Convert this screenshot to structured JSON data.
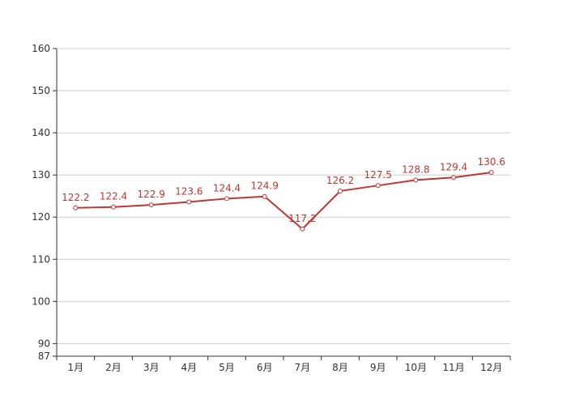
{
  "chart_data": {
    "type": "line",
    "categories": [
      "1月",
      "2月",
      "3月",
      "4月",
      "5月",
      "6月",
      "7月",
      "8月",
      "9月",
      "10月",
      "11月",
      "12月"
    ],
    "series": [
      {
        "values": [
          122.2,
          122.4,
          122.9,
          123.6,
          124.4,
          124.9,
          117.2,
          126.2,
          127.5,
          128.8,
          129.4,
          130.6
        ],
        "color": "#c23531"
      }
    ],
    "ylim": [
      87,
      160
    ],
    "yticks": [
      87,
      90,
      100,
      110,
      120,
      130,
      140,
      150,
      160
    ],
    "ytick_labels": [
      "87",
      "90",
      "100",
      "110",
      "120",
      "130",
      "140",
      "150",
      "160"
    ],
    "grid": true,
    "data_labels": true,
    "markers": "hollow-circle",
    "colors": {
      "line": "#c23531",
      "grid": "#cccccc",
      "axis": "#333333",
      "text": "#333333"
    }
  }
}
